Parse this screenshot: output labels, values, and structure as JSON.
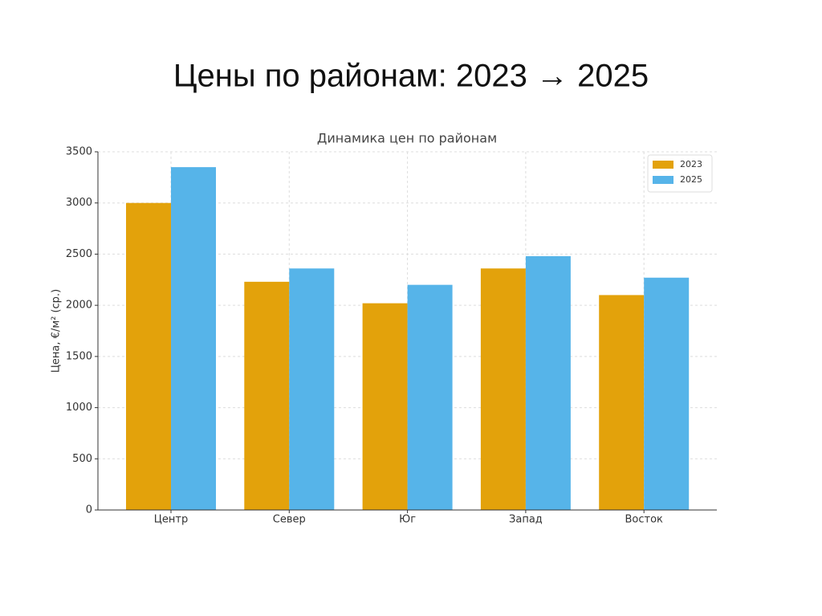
{
  "slide": {
    "title": "Цены по районам: 2023 → 2025"
  },
  "chart_data": {
    "type": "grouped-bar",
    "title": "Динамика цен по районам",
    "y_label": "Цена, €/м² (ср.)",
    "categories": [
      "Центр",
      "Север",
      "Юг",
      "Запад",
      "Восток"
    ],
    "series": [
      {
        "name": "2023",
        "color": "#e3a20b",
        "values": [
          3000,
          2230,
          2020,
          2360,
          2100
        ]
      },
      {
        "name": "2025",
        "color": "#56b4e9",
        "values": [
          3350,
          2360,
          2200,
          2480,
          2270
        ]
      }
    ],
    "ylim": [
      0,
      3500
    ],
    "yticks": [
      0,
      500,
      1000,
      1500,
      2000,
      2500,
      3000,
      3500
    ],
    "grid": true,
    "legend": "upper-right"
  }
}
